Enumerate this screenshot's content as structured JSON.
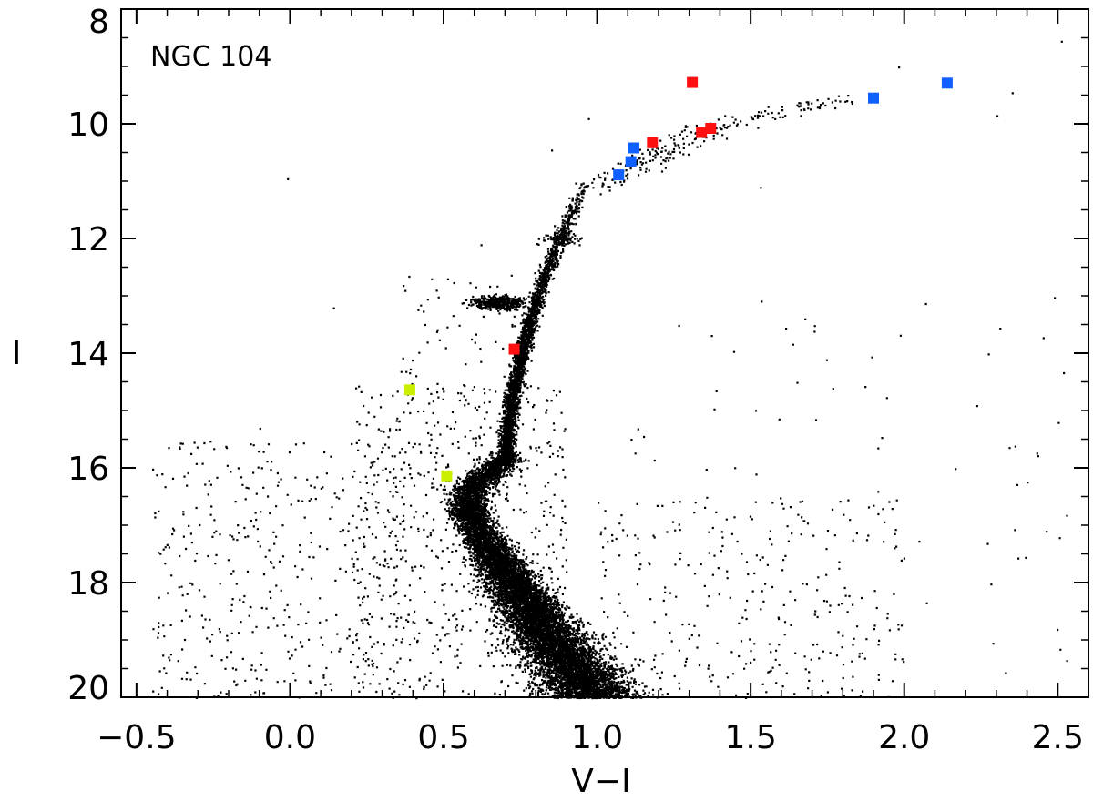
{
  "chart_data": {
    "type": "scatter",
    "title": "",
    "annotation": "NGC 104",
    "xlabel": "V−I",
    "ylabel": "I",
    "xlim": [
      -0.55,
      2.6
    ],
    "ylim": [
      20.0,
      8.0
    ],
    "y_inverted": true,
    "x_ticks": [
      -0.5,
      0.0,
      0.5,
      1.0,
      1.5,
      2.0,
      2.5
    ],
    "x_tick_labels": [
      "−0.5",
      "0.0",
      "0.5",
      "1.0",
      "1.5",
      "2.0",
      "2.5"
    ],
    "y_ticks": [
      8,
      10,
      12,
      14,
      16,
      18,
      20
    ],
    "y_tick_labels": [
      "8",
      "10",
      "12",
      "14",
      "16",
      "18",
      "20"
    ],
    "grid": false,
    "legend": "none",
    "colors": {
      "background_stars": "#000000",
      "red": "#ff1010",
      "blue": "#1060ff",
      "yellow": "#ccee00"
    },
    "series": [
      {
        "color": "red",
        "x": [
          1.31,
          1.18,
          1.34,
          1.37,
          0.73
        ],
        "y": [
          9.28,
          10.33,
          10.15,
          10.08,
          13.93
        ]
      },
      {
        "color": "blue",
        "x": [
          2.14,
          1.9,
          1.12,
          1.11,
          1.07
        ],
        "y": [
          9.29,
          9.55,
          10.42,
          10.66,
          10.89
        ]
      },
      {
        "color": "yellow",
        "x": [
          0.39,
          0.51
        ],
        "y": [
          14.64,
          16.14
        ]
      }
    ],
    "background_stars": {
      "description_shape": "dense color-magnitude diagram",
      "isolated_points": {
        "x": [
          -0.01,
          0.14,
          2.51,
          2.3,
          2.35,
          1.75,
          1.71,
          1.98,
          2.5,
          1.53,
          0.62,
          0.97,
          0.85,
          -0.1
        ],
        "y": [
          10.95,
          13.2,
          8.55,
          9.85,
          9.45,
          9.55,
          15.15,
          9.0,
          15.2,
          11.1,
          12.1,
          9.9,
          10.45,
          15.3
        ]
      }
    }
  }
}
